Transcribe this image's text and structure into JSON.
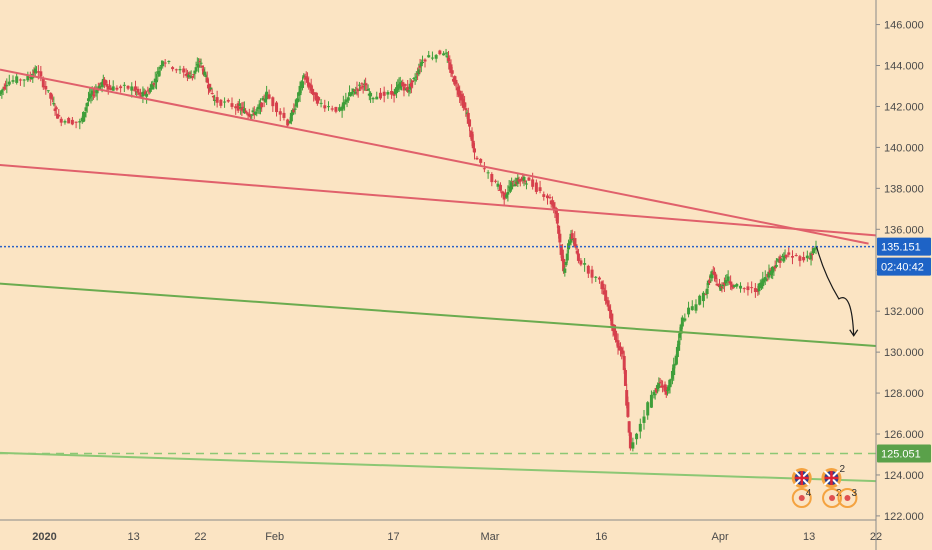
{
  "chart_data": {
    "type": "candlestick",
    "title": "",
    "xlabel": "",
    "ylabel": "",
    "ylim": [
      121.8,
      147.2
    ],
    "xlim": [
      "2019-12-26",
      "2020-04-22"
    ],
    "y_ticks": [
      {
        "value": 122,
        "label": "122.000"
      },
      {
        "value": 124,
        "label": "124.000"
      },
      {
        "value": 126,
        "label": "126.000"
      },
      {
        "value": 128,
        "label": "128.000"
      },
      {
        "value": 130,
        "label": "130.000"
      },
      {
        "value": 132,
        "label": "132.000"
      },
      {
        "value": 134,
        "label": "134.000"
      },
      {
        "value": 136,
        "label": "136.000"
      },
      {
        "value": 138,
        "label": "138.000"
      },
      {
        "value": 140,
        "label": "140.000"
      },
      {
        "value": 142,
        "label": "142.000"
      },
      {
        "value": 144,
        "label": "144.000"
      },
      {
        "value": 146,
        "label": "146.000"
      }
    ],
    "x_ticks": [
      {
        "date": "2020-01-01",
        "label": "2020",
        "bold": true
      },
      {
        "date": "2020-01-13",
        "label": "13"
      },
      {
        "date": "2020-01-22",
        "label": "22"
      },
      {
        "date": "2020-02-01",
        "label": "Feb"
      },
      {
        "date": "2020-02-17",
        "label": "17"
      },
      {
        "date": "2020-03-01",
        "label": "Mar"
      },
      {
        "date": "2020-03-16",
        "label": "16"
      },
      {
        "date": "2020-04-01",
        "label": "Apr"
      },
      {
        "date": "2020-04-13",
        "label": "13"
      },
      {
        "date": "2020-04-22",
        "label": "22"
      }
    ],
    "price_path": [
      [
        "2019-12-26",
        142.6
      ],
      [
        "2019-12-27",
        143.2
      ],
      [
        "2019-12-30",
        143.4
      ],
      [
        "2019-12-31",
        143.8
      ],
      [
        "2020-01-02",
        142.4
      ],
      [
        "2020-01-03",
        141.4
      ],
      [
        "2020-01-06",
        141.2
      ],
      [
        "2020-01-07",
        142.4
      ],
      [
        "2020-01-08",
        142.8
      ],
      [
        "2020-01-09",
        143.2
      ],
      [
        "2020-01-10",
        142.9
      ],
      [
        "2020-01-13",
        142.9
      ],
      [
        "2020-01-14",
        142.5
      ],
      [
        "2020-01-15",
        142.7
      ],
      [
        "2020-01-16",
        143.3
      ],
      [
        "2020-01-17",
        144.3
      ],
      [
        "2020-01-20",
        143.6
      ],
      [
        "2020-01-21",
        143.5
      ],
      [
        "2020-01-22",
        144.2
      ],
      [
        "2020-01-23",
        143.2
      ],
      [
        "2020-01-24",
        142.3
      ],
      [
        "2020-01-27",
        142.0
      ],
      [
        "2020-01-28",
        141.8
      ],
      [
        "2020-01-29",
        141.6
      ],
      [
        "2020-01-30",
        141.9
      ],
      [
        "2020-01-31",
        142.6
      ],
      [
        "2020-02-03",
        141.2
      ],
      [
        "2020-02-04",
        142.2
      ],
      [
        "2020-02-05",
        143.5
      ],
      [
        "2020-02-06",
        142.8
      ],
      [
        "2020-02-07",
        142.2
      ],
      [
        "2020-02-10",
        141.8
      ],
      [
        "2020-02-11",
        142.5
      ],
      [
        "2020-02-12",
        142.8
      ],
      [
        "2020-02-13",
        143.1
      ],
      [
        "2020-02-14",
        142.5
      ],
      [
        "2020-02-17",
        142.6
      ],
      [
        "2020-02-18",
        143.1
      ],
      [
        "2020-02-19",
        142.8
      ],
      [
        "2020-02-20",
        143.4
      ],
      [
        "2020-02-21",
        144.3
      ],
      [
        "2020-02-24",
        144.7
      ],
      [
        "2020-02-25",
        143.5
      ],
      [
        "2020-02-26",
        142.6
      ],
      [
        "2020-02-27",
        141.6
      ],
      [
        "2020-02-28",
        139.6
      ],
      [
        "2020-03-02",
        138.2
      ],
      [
        "2020-03-03",
        137.6
      ],
      [
        "2020-03-04",
        138.2
      ],
      [
        "2020-03-05",
        138.4
      ],
      [
        "2020-03-06",
        138.4
      ],
      [
        "2020-03-09",
        137.6
      ],
      [
        "2020-03-10",
        136.8
      ],
      [
        "2020-03-11",
        133.9
      ],
      [
        "2020-03-12",
        135.8
      ],
      [
        "2020-03-13",
        134.6
      ],
      [
        "2020-03-16",
        133.4
      ],
      [
        "2020-03-17",
        132.3
      ],
      [
        "2020-03-18",
        130.6
      ],
      [
        "2020-03-19",
        129.8
      ],
      [
        "2020-03-20",
        125.2
      ],
      [
        "2020-03-23",
        127.9
      ],
      [
        "2020-03-24",
        128.5
      ],
      [
        "2020-03-25",
        128.0
      ],
      [
        "2020-03-26",
        129.5
      ],
      [
        "2020-03-27",
        131.6
      ],
      [
        "2020-03-30",
        132.8
      ],
      [
        "2020-03-31",
        133.9
      ],
      [
        "2020-04-01",
        133.1
      ],
      [
        "2020-04-02",
        133.6
      ],
      [
        "2020-04-03",
        133.2
      ],
      [
        "2020-04-06",
        133.0
      ],
      [
        "2020-04-07",
        133.6
      ],
      [
        "2020-04-08",
        134.0
      ],
      [
        "2020-04-09",
        134.5
      ],
      [
        "2020-04-10",
        134.7
      ],
      [
        "2020-04-13",
        134.6
      ],
      [
        "2020-04-14",
        135.15
      ]
    ],
    "trendlines": [
      {
        "name": "resistance-upper",
        "color": "#e0606b",
        "from": [
          "2019-12-26",
          143.8
        ],
        "to": [
          "2020-04-21",
          135.3
        ]
      },
      {
        "name": "resistance-lower",
        "color": "#e0606b",
        "from": [
          "2019-12-24",
          139.2
        ],
        "to": [
          "2020-04-22",
          135.7
        ]
      },
      {
        "name": "channel-green",
        "color": "#6aab4f",
        "from": [
          "2019-12-24",
          133.4
        ],
        "to": [
          "2020-04-22",
          130.3
        ]
      },
      {
        "name": "support-green",
        "color": "#8cc774",
        "from": [
          "2019-12-24",
          125.1
        ],
        "to": [
          "2020-04-22",
          123.7
        ]
      }
    ],
    "horizontal_lines": [
      {
        "name": "current-price-line",
        "value": 135.151,
        "style": "dotted",
        "color": "#2a62c8"
      },
      {
        "name": "support-dashed",
        "value": 125.051,
        "style": "dashed",
        "color": "#8cc774"
      }
    ],
    "projection": [
      [
        "2020-04-14",
        135.15
      ],
      [
        "2020-04-15",
        133.8
      ],
      [
        "2020-04-17",
        132.6
      ],
      [
        "2020-04-19",
        133.0
      ],
      [
        "2020-04-19",
        130.8
      ]
    ],
    "price_label": {
      "value": "135.151",
      "color": "#1e63c6"
    },
    "countdown_label": {
      "value": "02:40:42",
      "color": "#1e63c6"
    },
    "support_label": {
      "value": "125.051",
      "color": "#5aa14a"
    },
    "event_icons": [
      {
        "type": "uk-flag-icon",
        "badge": "",
        "date": "2020-04-12"
      },
      {
        "type": "uk-flag-icon",
        "badge": "2",
        "date": "2020-04-16"
      },
      {
        "type": "events-count-icon",
        "badge": "4",
        "date": "2020-04-12"
      },
      {
        "type": "events-count-icon",
        "badge": "2",
        "date": "2020-04-15"
      },
      {
        "type": "events-count-icon",
        "badge": "3",
        "date": "2020-04-16"
      }
    ],
    "colors": {
      "background": "#fbe4c3",
      "up": "#3f9e3a",
      "down": "#d6404c",
      "axis_text": "#4a4a4a"
    }
  }
}
